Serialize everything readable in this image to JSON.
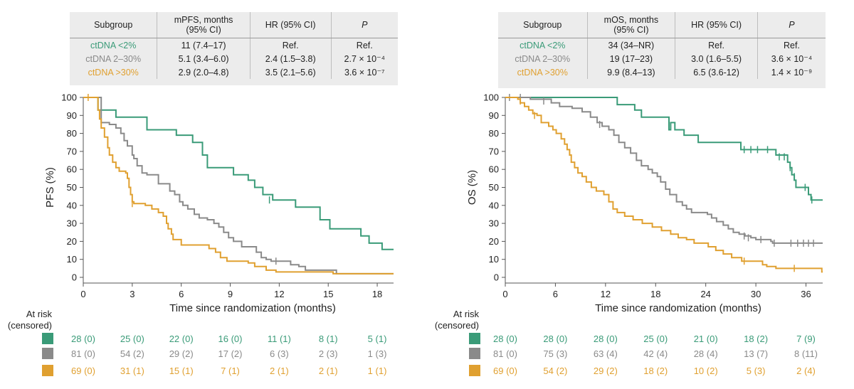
{
  "chart_data": [
    {
      "type": "line",
      "id": "pfs",
      "ylabel": "PFS (%)",
      "xlabel": "Time since randomization (months)",
      "xlim": [
        0,
        19
      ],
      "ylim": [
        0,
        100
      ],
      "xticks": [
        0,
        3,
        6,
        9,
        12,
        15,
        18
      ],
      "yticks": [
        0,
        10,
        20,
        30,
        40,
        50,
        60,
        70,
        80,
        90,
        100
      ],
      "table": {
        "headers": [
          "Subgroup",
          "mPFS, months\n(95% CI)",
          "HR (95% CI)",
          "P"
        ],
        "rows": [
          [
            "ctDNA <2%",
            "11 (7.4–17)",
            "Ref.",
            "Ref."
          ],
          [
            "ctDNA 2–30%",
            "5.1 (3.4–6.0)",
            "2.4 (1.5–3.8)",
            "2.7 × 10⁻⁴"
          ],
          [
            "ctDNA >30%",
            "2.9 (2.0–4.8)",
            "3.5 (2.1–5.6)",
            "3.6 × 10⁻⁷"
          ]
        ]
      },
      "risk_label": "At risk\n(censored)",
      "at_risk": [
        [
          "28 (0)",
          "25 (0)",
          "22 (0)",
          "16 (0)",
          "11 (1)",
          "8 (1)",
          "5 (1)"
        ],
        [
          "81 (0)",
          "54 (2)",
          "29 (2)",
          "17 (2)",
          "6 (3)",
          "2 (3)",
          "1 (3)"
        ],
        [
          "69 (0)",
          "31 (1)",
          "15 (1)",
          "7 (1)",
          "2 (1)",
          "2 (1)",
          "1 (1)"
        ]
      ],
      "series": [
        {
          "color": "#3a9b78",
          "steps": [
            [
              0,
              100
            ],
            [
              0.8,
              100
            ],
            [
              0.9,
              93
            ],
            [
              2,
              89
            ],
            [
              3.9,
              82
            ],
            [
              5.7,
              79
            ],
            [
              6.7,
              75
            ],
            [
              7.3,
              68
            ],
            [
              7.6,
              61
            ],
            [
              9.2,
              57
            ],
            [
              10.1,
              54
            ],
            [
              10.5,
              50
            ],
            [
              11,
              46
            ],
            [
              11.6,
              43
            ],
            [
              13,
              39
            ],
            [
              14.5,
              32
            ],
            [
              15.1,
              27
            ],
            [
              17,
              23
            ],
            [
              17.5,
              19
            ],
            [
              18.3,
              15.5
            ],
            [
              19,
              15.5
            ]
          ],
          "censors": [
            [
              11.4,
              43
            ]
          ]
        },
        {
          "color": "#8a8a8a",
          "steps": [
            [
              0,
              100
            ],
            [
              0.9,
              100
            ],
            [
              1.1,
              86
            ],
            [
              1.6,
              85
            ],
            [
              2,
              83
            ],
            [
              2.3,
              80
            ],
            [
              2.5,
              76
            ],
            [
              2.7,
              73
            ],
            [
              3,
              68
            ],
            [
              3.1,
              66
            ],
            [
              3.3,
              62
            ],
            [
              3.6,
              58
            ],
            [
              3.9,
              57
            ],
            [
              4.6,
              52
            ],
            [
              5.3,
              48
            ],
            [
              5.6,
              46
            ],
            [
              5.9,
              42
            ],
            [
              6.1,
              40
            ],
            [
              6.4,
              38
            ],
            [
              6.8,
              35
            ],
            [
              7.1,
              33
            ],
            [
              7.6,
              32
            ],
            [
              8,
              30
            ],
            [
              8.3,
              28
            ],
            [
              8.6,
              25
            ],
            [
              8.9,
              22
            ],
            [
              9.2,
              20
            ],
            [
              9.7,
              17
            ],
            [
              10.6,
              14
            ],
            [
              10.9,
              11
            ],
            [
              11.2,
              10
            ],
            [
              11.5,
              9
            ],
            [
              12.3,
              9
            ],
            [
              12.7,
              7
            ],
            [
              13.2,
              6
            ],
            [
              13.6,
              4
            ],
            [
              15.1,
              4
            ],
            [
              15.5,
              2
            ],
            [
              19,
              2
            ]
          ],
          "censors": [
            [
              11.8,
              9
            ]
          ]
        },
        {
          "color": "#e0a030",
          "steps": [
            [
              0,
              100
            ],
            [
              0.8,
              100
            ],
            [
              0.9,
              93
            ],
            [
              1,
              88
            ],
            [
              1.1,
              83
            ],
            [
              1.3,
              78
            ],
            [
              1.5,
              72
            ],
            [
              1.6,
              68
            ],
            [
              1.8,
              64
            ],
            [
              2,
              61
            ],
            [
              2.2,
              59
            ],
            [
              2.6,
              58
            ],
            [
              2.7,
              55
            ],
            [
              2.8,
              50
            ],
            [
              2.9,
              46
            ],
            [
              3,
              42
            ],
            [
              3.1,
              41
            ],
            [
              3.8,
              40
            ],
            [
              4.2,
              38
            ],
            [
              4.6,
              36
            ],
            [
              4.9,
              34
            ],
            [
              5.1,
              30
            ],
            [
              5.2,
              27
            ],
            [
              5.4,
              24
            ],
            [
              5.5,
              21
            ],
            [
              6,
              18
            ],
            [
              7.7,
              16
            ],
            [
              8.1,
              14
            ],
            [
              8.4,
              11
            ],
            [
              8.8,
              9
            ],
            [
              10.1,
              8
            ],
            [
              10.5,
              6
            ],
            [
              11.2,
              4
            ],
            [
              11.8,
              3
            ],
            [
              15.2,
              3
            ],
            [
              15.3,
              2
            ],
            [
              19,
              2
            ]
          ],
          "censors": [
            [
              0.3,
              100
            ],
            [
              3.0,
              41
            ]
          ]
        }
      ]
    },
    {
      "type": "line",
      "id": "os",
      "ylabel": "OS (%)",
      "xlabel": "Time since randomization (months)",
      "xlim": [
        0,
        38
      ],
      "ylim": [
        0,
        100
      ],
      "xticks": [
        0,
        6,
        12,
        18,
        24,
        30,
        36
      ],
      "yticks": [
        0,
        10,
        20,
        30,
        40,
        50,
        60,
        70,
        80,
        90,
        100
      ],
      "table": {
        "headers": [
          "Subgroup",
          "mOS, months\n(95% CI)",
          "HR (95% CI)",
          "P"
        ],
        "rows": [
          [
            "ctDNA <2%",
            "34 (34–NR)",
            "Ref.",
            "Ref."
          ],
          [
            "ctDNA 2–30%",
            "19 (17–23)",
            "3.0 (1.6–5.5)",
            "3.6 × 10⁻⁴"
          ],
          [
            "ctDNA >30%",
            "9.9 (8.4–13)",
            "6.5 (3.6-12)",
            "1.4 × 10⁻⁹"
          ]
        ]
      },
      "risk_label": "At risk\n(censored)",
      "at_risk": [
        [
          "28 (0)",
          "28 (0)",
          "28 (0)",
          "25 (0)",
          "21 (0)",
          "18 (2)",
          "7 (9)"
        ],
        [
          "81 (0)",
          "75 (3)",
          "63 (4)",
          "42 (4)",
          "28 (4)",
          "13 (7)",
          "8 (11)"
        ],
        [
          "69 (0)",
          "54 (2)",
          "29 (2)",
          "18 (2)",
          "10 (2)",
          "5 (3)",
          "2 (4)"
        ]
      ],
      "series": [
        {
          "color": "#3a9b78",
          "steps": [
            [
              0,
              100
            ],
            [
              13.3,
              100
            ],
            [
              13.4,
              96
            ],
            [
              15.5,
              93
            ],
            [
              16.3,
              89
            ],
            [
              19.6,
              82
            ],
            [
              19.8,
              86
            ],
            [
              20.3,
              82
            ],
            [
              21.4,
              79
            ],
            [
              23.1,
              75
            ],
            [
              28,
              75
            ],
            [
              28.2,
              71
            ],
            [
              32.2,
              71
            ],
            [
              32.4,
              68
            ],
            [
              33.8,
              64
            ],
            [
              34.1,
              61
            ],
            [
              34.3,
              57
            ],
            [
              34.6,
              54
            ],
            [
              34.8,
              50
            ],
            [
              36.3,
              46
            ],
            [
              36.6,
              43
            ],
            [
              38,
              43
            ]
          ],
          "censors": [
            [
              28.6,
              71
            ],
            [
              29.4,
              71
            ],
            [
              30.2,
              71
            ],
            [
              31.4,
              71
            ],
            [
              32.8,
              67
            ],
            [
              33.4,
              67
            ],
            [
              34.1,
              61
            ],
            [
              34.6,
              56
            ],
            [
              35.9,
              50
            ],
            [
              36.7,
              43
            ]
          ]
        },
        {
          "color": "#8a8a8a",
          "steps": [
            [
              0,
              100
            ],
            [
              3,
              99
            ],
            [
              5.5,
              97
            ],
            [
              6.5,
              95
            ],
            [
              8,
              94
            ],
            [
              9.2,
              92
            ],
            [
              10.2,
              89
            ],
            [
              11,
              86
            ],
            [
              11.6,
              84
            ],
            [
              12.4,
              82
            ],
            [
              13,
              79
            ],
            [
              13.6,
              75
            ],
            [
              14.3,
              72
            ],
            [
              15,
              69
            ],
            [
              15.7,
              65
            ],
            [
              16.3,
              62
            ],
            [
              17.1,
              60
            ],
            [
              17.6,
              58
            ],
            [
              18.2,
              56
            ],
            [
              18.6,
              53
            ],
            [
              19.2,
              49
            ],
            [
              19.7,
              46
            ],
            [
              20.5,
              42
            ],
            [
              21.2,
              40
            ],
            [
              21.7,
              38
            ],
            [
              22.3,
              36
            ],
            [
              24.2,
              35
            ],
            [
              24.7,
              33
            ],
            [
              25.3,
              31
            ],
            [
              26.1,
              29
            ],
            [
              26.7,
              27
            ],
            [
              27.3,
              25
            ],
            [
              28,
              24
            ],
            [
              28.7,
              23
            ],
            [
              29.4,
              22
            ],
            [
              30,
              21
            ],
            [
              31.8,
              20
            ],
            [
              32,
              19
            ],
            [
              38,
              19
            ]
          ],
          "censors": [
            [
              0.5,
              100
            ],
            [
              1.8,
              100
            ],
            [
              4.6,
              98
            ],
            [
              11.3,
              85
            ],
            [
              28.6,
              23
            ],
            [
              29.1,
              22
            ],
            [
              30.6,
              21
            ],
            [
              32.2,
              19
            ],
            [
              34.2,
              19
            ],
            [
              35,
              19
            ],
            [
              35.7,
              19
            ],
            [
              36.3,
              19
            ],
            [
              36.9,
              19
            ]
          ]
        },
        {
          "color": "#e0a030",
          "steps": [
            [
              0,
              100
            ],
            [
              1.5,
              99
            ],
            [
              1.8,
              97
            ],
            [
              2.3,
              95
            ],
            [
              2.8,
              93
            ],
            [
              3.3,
              91
            ],
            [
              3.8,
              90
            ],
            [
              4.3,
              86
            ],
            [
              5.2,
              84
            ],
            [
              5.7,
              82
            ],
            [
              6.1,
              80
            ],
            [
              6.7,
              77
            ],
            [
              7.1,
              74
            ],
            [
              7.4,
              71
            ],
            [
              7.7,
              68
            ],
            [
              7.9,
              64
            ],
            [
              8.3,
              61
            ],
            [
              8.7,
              58
            ],
            [
              9.2,
              56
            ],
            [
              9.7,
              53
            ],
            [
              10.3,
              50
            ],
            [
              10.9,
              48
            ],
            [
              11.8,
              46
            ],
            [
              12.4,
              42
            ],
            [
              12.9,
              38
            ],
            [
              13.4,
              36
            ],
            [
              14.3,
              34
            ],
            [
              15.3,
              32
            ],
            [
              16.4,
              30
            ],
            [
              17.6,
              28
            ],
            [
              18.7,
              26
            ],
            [
              19.8,
              24
            ],
            [
              20.7,
              22
            ],
            [
              21.7,
              21
            ],
            [
              22.6,
              19
            ],
            [
              24.3,
              17
            ],
            [
              25.2,
              15
            ],
            [
              26.1,
              13
            ],
            [
              27.1,
              11
            ],
            [
              28.3,
              9
            ],
            [
              30.2,
              9
            ],
            [
              30.8,
              7
            ],
            [
              31.3,
              6
            ],
            [
              32.4,
              5
            ],
            [
              37.6,
              5
            ],
            [
              37.9,
              3
            ],
            [
              38,
              3
            ]
          ],
          "censors": [
            [
              1.8,
              98
            ],
            [
              3.5,
              90
            ],
            [
              28.6,
              9
            ],
            [
              34.6,
              5
            ]
          ]
        }
      ]
    }
  ]
}
